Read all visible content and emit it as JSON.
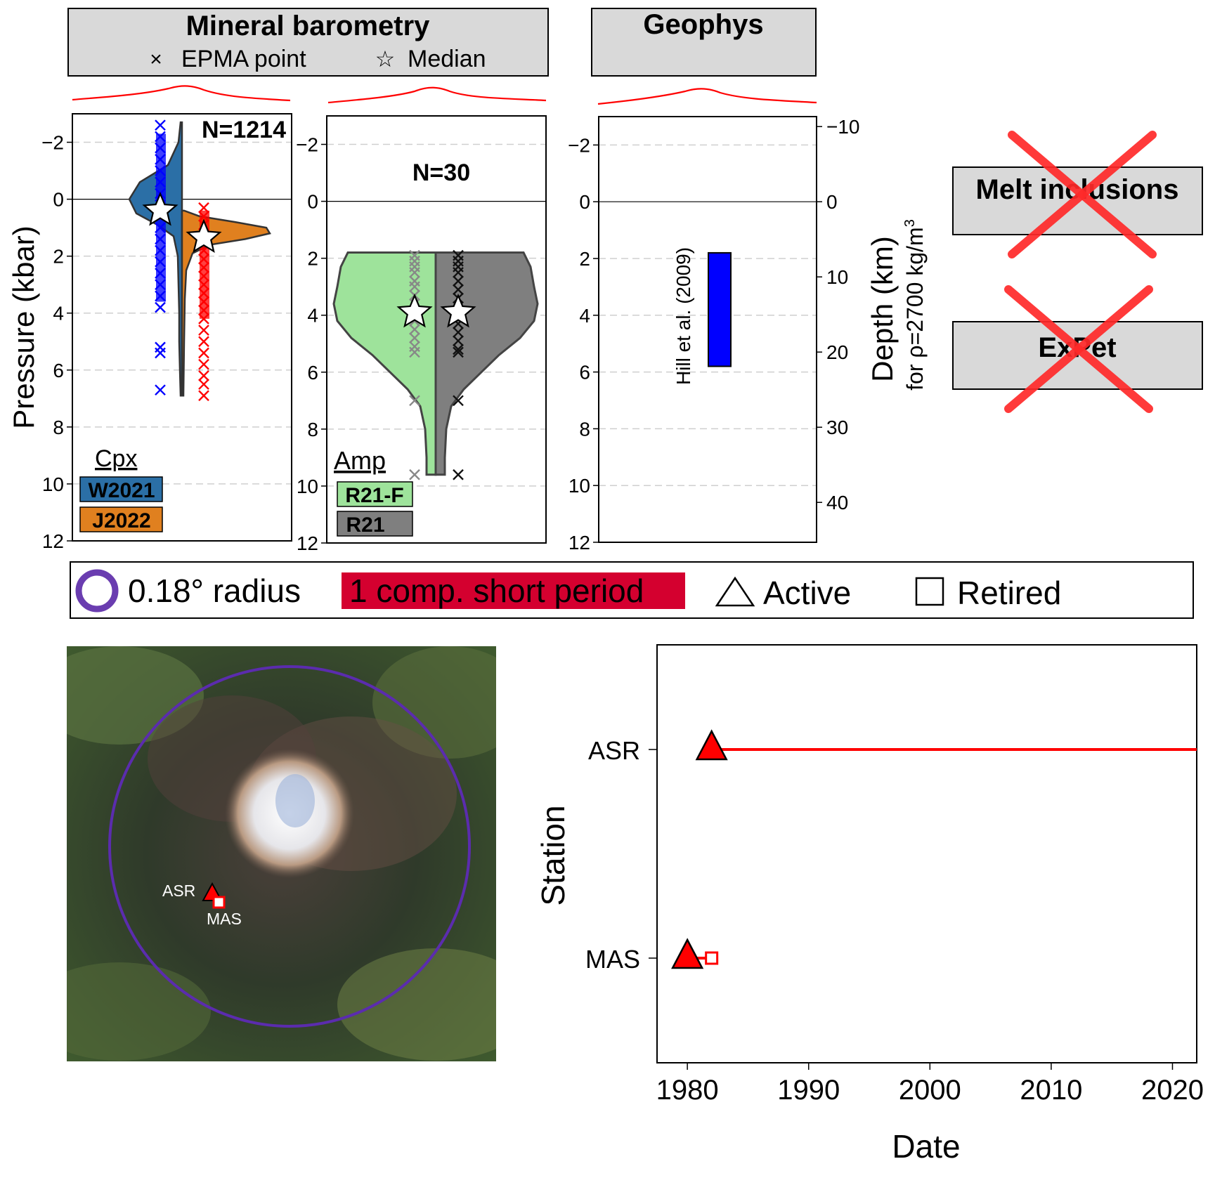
{
  "colors": {
    "cpx_w2021": "#2b6fa6",
    "cpx_j2022": "#e0801f",
    "amp_r21f": "#9ee39b",
    "amp_r21": "#7f7f7f",
    "hill_bar": "#0000ff",
    "station_red": "#ff0000",
    "station_fill": "#ff0000",
    "radius_purple": "#5b2cae",
    "legend_red_bg": "#d4002f",
    "header_gray": "#d9d9d9",
    "cross_red": "#ff2a2a"
  },
  "header": {
    "barometry_title": "Mineral barometry",
    "epma_label": "EPMA point",
    "median_label": "Median",
    "geophys_title": "Geophys"
  },
  "crossed_boxes": {
    "melt": "Melt inclusions",
    "expet": "ExPet"
  },
  "pressure_axis": {
    "label": "Pressure (kbar)",
    "ticks": [
      -2,
      0,
      2,
      4,
      6,
      8,
      10,
      12
    ],
    "ylim": [
      -3,
      12
    ]
  },
  "depth_axis": {
    "label": "Depth (km)",
    "sublabel_main": "for ρ=2700 kg/m",
    "sublabel_sup": "3",
    "ticks": [
      -10,
      0,
      10,
      20,
      30,
      40
    ]
  },
  "panels": {
    "cpx": {
      "n_label": "N=1214",
      "group_label": "Cpx",
      "legend": [
        "W2021",
        "J2022"
      ]
    },
    "amp": {
      "n_label": "N=30",
      "group_label": "Amp",
      "legend": [
        "R21-F",
        "R21"
      ]
    },
    "geophys": {
      "bar_label": "Hill et al. (2009)"
    }
  },
  "legend_strip": {
    "radius": "0.18° radius",
    "component": "1 comp. short period",
    "active": "Active",
    "retired": "Retired"
  },
  "map": {
    "stations": [
      "ASR",
      "MAS"
    ]
  },
  "chart_data": [
    {
      "type": "violin",
      "panel": "cpx",
      "ylabel": "Pressure (kbar)",
      "ylim": [
        -3,
        12
      ],
      "series": [
        {
          "name": "W2021",
          "median": 0.4,
          "range": [
            -2.6,
            6.7
          ],
          "points": [
            -2.6,
            -2.2,
            -1.8,
            -1.4,
            -1,
            -0.6,
            -0.2,
            0.2,
            0.6,
            1.0,
            1.4,
            1.8,
            2.2,
            2.6,
            3.0,
            3.4,
            3.8,
            5.2,
            5.4,
            6.7
          ]
        },
        {
          "name": "J2022",
          "median": 1.35,
          "range": [
            0.3,
            6.9
          ],
          "points": [
            0.3,
            0.6,
            0.9,
            1.2,
            1.5,
            1.8,
            2.1,
            2.4,
            2.7,
            3.0,
            3.3,
            3.6,
            3.9,
            4.2,
            4.6,
            5.0,
            5.4,
            5.8,
            6.2,
            6.5,
            6.9
          ]
        }
      ]
    },
    {
      "type": "violin",
      "panel": "amp",
      "ylabel": "Pressure (kbar)",
      "ylim": [
        -3,
        12
      ],
      "series": [
        {
          "name": "R21-F",
          "median": 3.9,
          "range": [
            1.8,
            9.6
          ],
          "points": [
            1.9,
            2.1,
            2.3,
            2.5,
            2.8,
            3.0,
            3.3,
            3.6,
            3.9,
            4.2,
            4.5,
            4.8,
            5.1,
            5.3,
            7.0,
            9.6
          ]
        },
        {
          "name": "R21",
          "median": 3.9,
          "range": [
            1.8,
            9.6
          ],
          "points": [
            1.9,
            2.1,
            2.3,
            2.5,
            2.8,
            3.1,
            3.4,
            3.7,
            4.0,
            4.3,
            4.6,
            4.9,
            5.2,
            5.3,
            7.0,
            9.6
          ]
        }
      ]
    },
    {
      "type": "bar",
      "panel": "geophys",
      "ylabel": "Pressure (kbar)",
      "ylim": [
        -3,
        12
      ],
      "series": [
        {
          "name": "Hill et al. (2009)",
          "range": [
            1.8,
            5.8
          ]
        }
      ]
    },
    {
      "type": "timeline",
      "panel": "stations",
      "xlabel": "Date",
      "ylabel": "Station",
      "xlim": [
        1977.5,
        2022
      ],
      "xticks": [
        1980,
        1990,
        2000,
        2010,
        2020
      ],
      "categories": [
        "ASR",
        "MAS"
      ],
      "series": [
        {
          "name": "ASR",
          "start": 1982,
          "end": 2022,
          "status": "Active"
        },
        {
          "name": "MAS",
          "start": 1980,
          "end": 1982,
          "status": "Retired"
        }
      ]
    }
  ]
}
